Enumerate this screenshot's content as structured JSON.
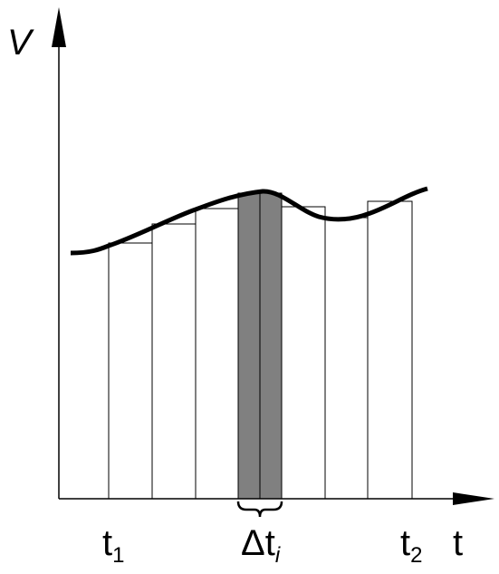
{
  "axes": {
    "y_label": "V",
    "x_label": "t"
  },
  "labels": [
    {
      "text": "t",
      "sub": "1"
    },
    {
      "text": "Δt",
      "sub": "i"
    },
    {
      "text": "t",
      "sub": "2"
    }
  ]
}
